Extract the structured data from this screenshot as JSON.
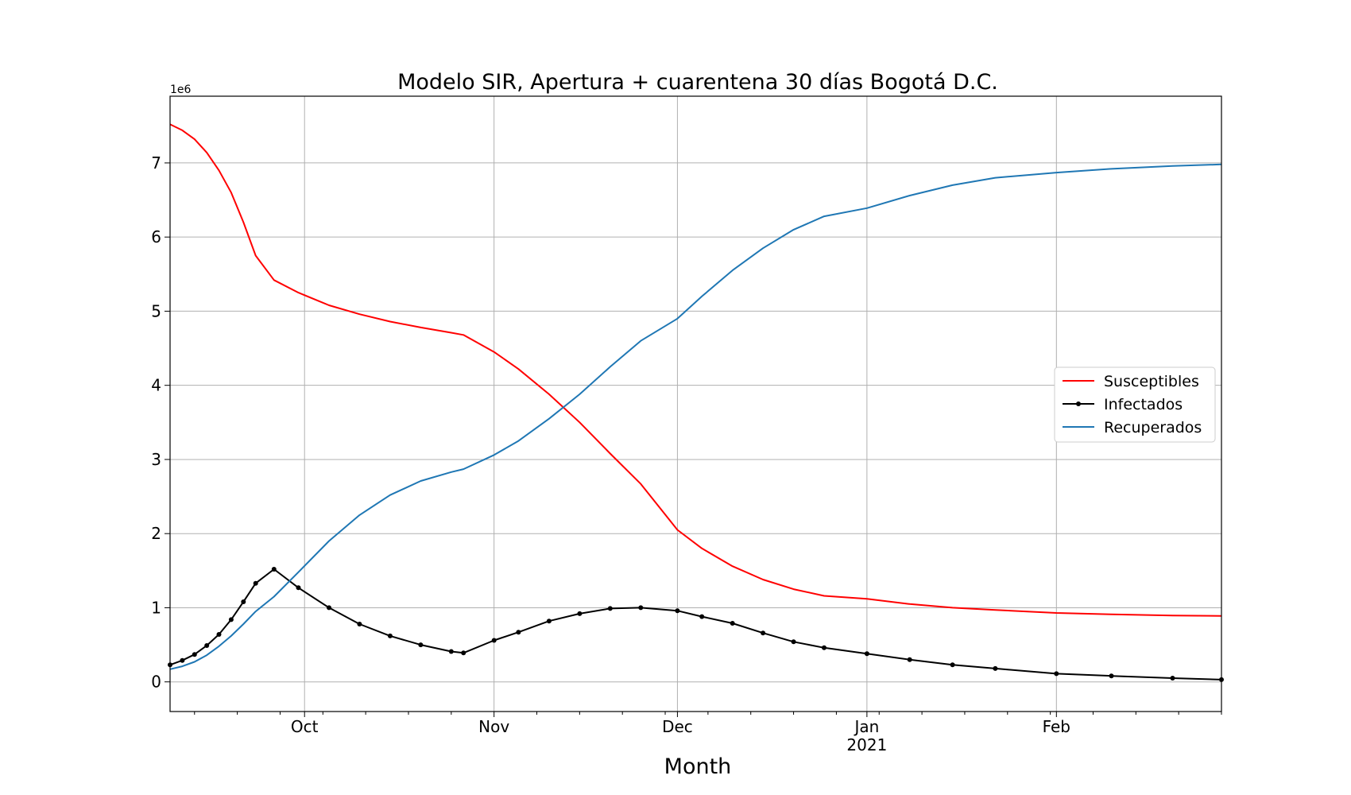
{
  "chart_data": {
    "type": "line",
    "title": "Modelo SIR, Apertura + cuarentena 30 días Bogotá D.C.",
    "xlabel": "Month",
    "ylabel": "",
    "y_offset_label": "1e6",
    "y_scale": 1000000,
    "x_range": [
      "2020-09-09",
      "2021-02-28"
    ],
    "ylim": [
      -400000,
      7900000
    ],
    "y_ticks": [
      0,
      1,
      2,
      3,
      4,
      5,
      6,
      7
    ],
    "x_major_ticks": [
      {
        "date": "2020-10-01",
        "label": "Oct",
        "sublabel": ""
      },
      {
        "date": "2020-11-01",
        "label": "Nov",
        "sublabel": ""
      },
      {
        "date": "2020-12-01",
        "label": "Dec",
        "sublabel": ""
      },
      {
        "date": "2021-01-01",
        "label": "Jan",
        "sublabel": "2021"
      },
      {
        "date": "2021-02-01",
        "label": "Feb",
        "sublabel": ""
      }
    ],
    "x_minor_ticks": [
      "2020-09-13",
      "2020-09-20",
      "2020-09-27",
      "2020-10-04",
      "2020-10-11",
      "2020-10-18",
      "2020-10-25",
      "2020-11-08",
      "2020-11-15",
      "2020-11-22",
      "2020-11-29",
      "2020-12-06",
      "2020-12-13",
      "2020-12-20",
      "2020-12-27",
      "2021-01-03",
      "2021-01-10",
      "2021-01-17",
      "2021-01-24",
      "2021-01-31",
      "2021-02-07",
      "2021-02-14",
      "2021-02-21",
      "2021-02-28"
    ],
    "grid": true,
    "legend_position": "center-right",
    "series": [
      {
        "name": "Susceptibles",
        "color": "#ff0000",
        "marker": false,
        "points": [
          [
            "2020-09-09",
            7520000
          ],
          [
            "2020-09-11",
            7440000
          ],
          [
            "2020-09-13",
            7320000
          ],
          [
            "2020-09-15",
            7140000
          ],
          [
            "2020-09-17",
            6900000
          ],
          [
            "2020-09-19",
            6600000
          ],
          [
            "2020-09-21",
            6200000
          ],
          [
            "2020-09-23",
            5750000
          ],
          [
            "2020-09-26",
            5420000
          ],
          [
            "2020-09-30",
            5250000
          ],
          [
            "2020-10-05",
            5080000
          ],
          [
            "2020-10-10",
            4960000
          ],
          [
            "2020-10-15",
            4860000
          ],
          [
            "2020-10-20",
            4780000
          ],
          [
            "2020-10-25",
            4710000
          ],
          [
            "2020-10-27",
            4680000
          ],
          [
            "2020-11-01",
            4450000
          ],
          [
            "2020-11-05",
            4220000
          ],
          [
            "2020-11-10",
            3880000
          ],
          [
            "2020-11-15",
            3500000
          ],
          [
            "2020-11-20",
            3080000
          ],
          [
            "2020-11-25",
            2670000
          ],
          [
            "2020-12-01",
            2050000
          ],
          [
            "2020-12-05",
            1800000
          ],
          [
            "2020-12-10",
            1560000
          ],
          [
            "2020-12-15",
            1380000
          ],
          [
            "2020-12-20",
            1250000
          ],
          [
            "2020-12-25",
            1160000
          ],
          [
            "2021-01-01",
            1120000
          ],
          [
            "2021-01-08",
            1050000
          ],
          [
            "2021-01-15",
            1000000
          ],
          [
            "2021-01-22",
            970000
          ],
          [
            "2021-02-01",
            930000
          ],
          [
            "2021-02-10",
            910000
          ],
          [
            "2021-02-20",
            895000
          ],
          [
            "2021-02-28",
            890000
          ]
        ]
      },
      {
        "name": "Infectados",
        "color": "#000000",
        "marker": true,
        "points": [
          [
            "2020-09-09",
            230000
          ],
          [
            "2020-09-11",
            290000
          ],
          [
            "2020-09-13",
            370000
          ],
          [
            "2020-09-15",
            490000
          ],
          [
            "2020-09-17",
            640000
          ],
          [
            "2020-09-19",
            840000
          ],
          [
            "2020-09-21",
            1080000
          ],
          [
            "2020-09-23",
            1330000
          ],
          [
            "2020-09-26",
            1520000
          ],
          [
            "2020-09-30",
            1270000
          ],
          [
            "2020-10-05",
            1000000
          ],
          [
            "2020-10-10",
            780000
          ],
          [
            "2020-10-15",
            620000
          ],
          [
            "2020-10-20",
            500000
          ],
          [
            "2020-10-25",
            410000
          ],
          [
            "2020-10-27",
            390000
          ],
          [
            "2020-11-01",
            560000
          ],
          [
            "2020-11-05",
            670000
          ],
          [
            "2020-11-10",
            820000
          ],
          [
            "2020-11-15",
            920000
          ],
          [
            "2020-11-20",
            990000
          ],
          [
            "2020-11-25",
            1000000
          ],
          [
            "2020-12-01",
            960000
          ],
          [
            "2020-12-05",
            880000
          ],
          [
            "2020-12-10",
            790000
          ],
          [
            "2020-12-15",
            660000
          ],
          [
            "2020-12-20",
            540000
          ],
          [
            "2020-12-25",
            460000
          ],
          [
            "2021-01-01",
            380000
          ],
          [
            "2021-01-08",
            300000
          ],
          [
            "2021-01-15",
            230000
          ],
          [
            "2021-01-22",
            180000
          ],
          [
            "2021-02-01",
            110000
          ],
          [
            "2021-02-10",
            80000
          ],
          [
            "2021-02-20",
            50000
          ],
          [
            "2021-02-28",
            30000
          ]
        ]
      },
      {
        "name": "Recuperados",
        "color": "#1f77b4",
        "marker": false,
        "points": [
          [
            "2020-09-09",
            170000
          ],
          [
            "2020-09-11",
            210000
          ],
          [
            "2020-09-13",
            270000
          ],
          [
            "2020-09-15",
            360000
          ],
          [
            "2020-09-17",
            480000
          ],
          [
            "2020-09-19",
            620000
          ],
          [
            "2020-09-21",
            780000
          ],
          [
            "2020-09-23",
            950000
          ],
          [
            "2020-09-26",
            1150000
          ],
          [
            "2020-09-30",
            1480000
          ],
          [
            "2020-10-05",
            1900000
          ],
          [
            "2020-10-10",
            2250000
          ],
          [
            "2020-10-15",
            2520000
          ],
          [
            "2020-10-20",
            2710000
          ],
          [
            "2020-10-25",
            2830000
          ],
          [
            "2020-10-27",
            2870000
          ],
          [
            "2020-11-01",
            3060000
          ],
          [
            "2020-11-05",
            3250000
          ],
          [
            "2020-11-10",
            3550000
          ],
          [
            "2020-11-15",
            3880000
          ],
          [
            "2020-11-20",
            4250000
          ],
          [
            "2020-11-25",
            4600000
          ],
          [
            "2020-12-01",
            4900000
          ],
          [
            "2020-12-05",
            5200000
          ],
          [
            "2020-12-10",
            5550000
          ],
          [
            "2020-12-15",
            5850000
          ],
          [
            "2020-12-20",
            6100000
          ],
          [
            "2020-12-25",
            6280000
          ],
          [
            "2021-01-01",
            6390000
          ],
          [
            "2021-01-08",
            6560000
          ],
          [
            "2021-01-15",
            6700000
          ],
          [
            "2021-01-22",
            6800000
          ],
          [
            "2021-02-01",
            6870000
          ],
          [
            "2021-02-10",
            6920000
          ],
          [
            "2021-02-20",
            6960000
          ],
          [
            "2021-02-28",
            6980000
          ]
        ]
      }
    ]
  }
}
